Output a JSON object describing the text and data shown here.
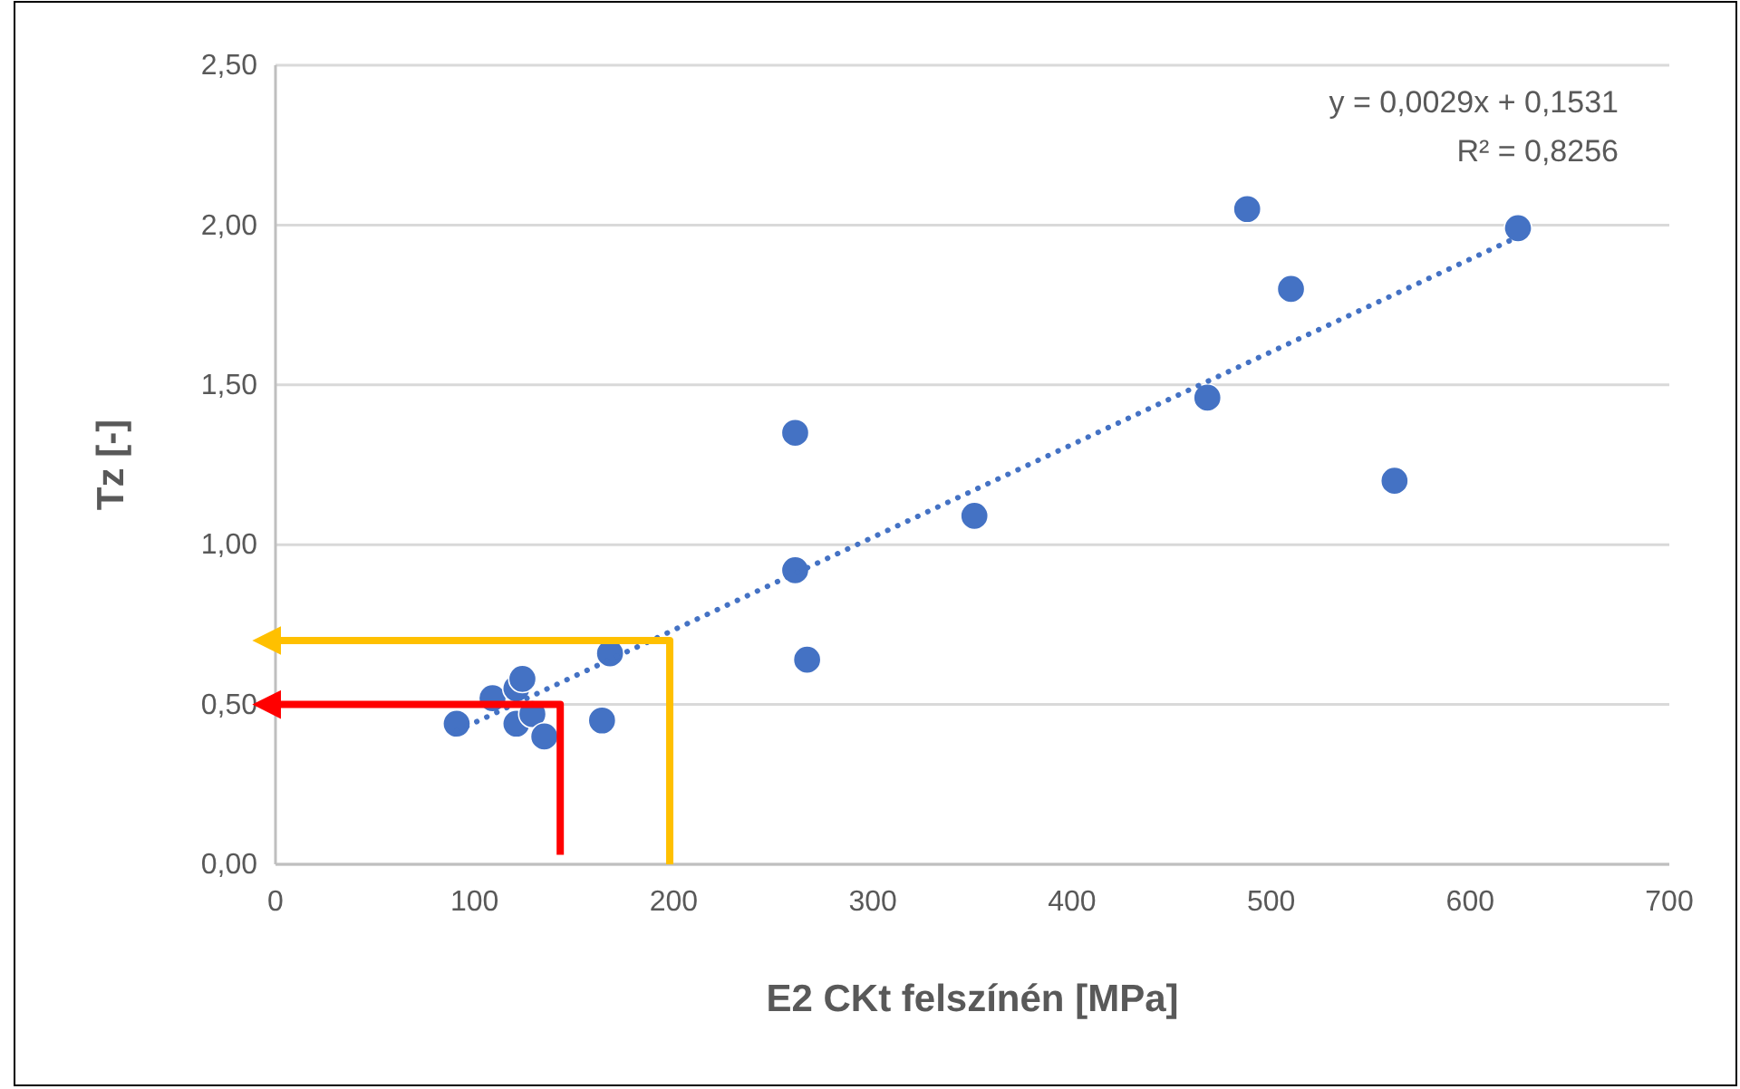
{
  "chart_data": {
    "type": "scatter",
    "xlabel": "E2 CKt felszínén [MPa]",
    "ylabel": "Tz [-]",
    "annotations": [
      "y = 0,0029x + 0,1531",
      "R² = 0,8256"
    ],
    "xlim": [
      0,
      700
    ],
    "xticks": [
      0,
      100,
      200,
      300,
      400,
      500,
      600,
      700
    ],
    "ylim": [
      0,
      2.5
    ],
    "yticks": [
      {
        "value": 0,
        "label": "0,00"
      },
      {
        "value": 0.5,
        "label": "0,50"
      },
      {
        "value": 1,
        "label": "1,00"
      },
      {
        "value": 1.5,
        "label": "1,50"
      },
      {
        "value": 2,
        "label": "2,00"
      },
      {
        "value": 2.5,
        "label": "2,50"
      }
    ],
    "grid": "y",
    "series": [
      {
        "marker": "circle",
        "color": "#4472c4",
        "x": [
          91,
          109,
          121,
          124,
          121,
          129,
          135,
          164,
          168,
          267,
          261,
          261,
          351,
          468,
          488,
          510,
          562,
          624
        ],
        "values": [
          0.44,
          0.52,
          0.55,
          0.58,
          0.44,
          0.47,
          0.4,
          0.45,
          0.66,
          0.64,
          1.35,
          0.92,
          1.09,
          1.46,
          2.05,
          1.8,
          1.2,
          1.99
        ]
      },
      {
        "type": "line",
        "color": "#4472c4",
        "line_style": "dotted",
        "x": [
          91,
          624
        ],
        "values": [
          0.417,
          1.963
        ]
      },
      {
        "type": "line",
        "color": "#ffc000",
        "line_style": "solid",
        "x": [
          198,
          198,
          0
        ],
        "values": [
          0,
          0.7,
          0.7
        ]
      },
      {
        "type": "line",
        "color": "#ff0000",
        "line_style": "solid",
        "x": [
          143,
          143,
          0
        ],
        "values": [
          0.03,
          0.5,
          0.5
        ]
      }
    ]
  }
}
